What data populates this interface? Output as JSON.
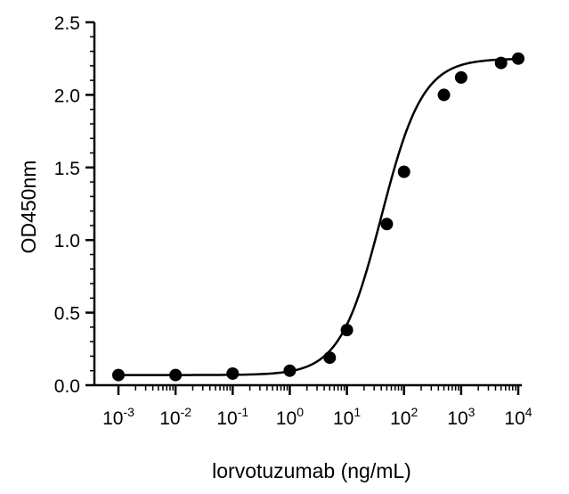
{
  "chart_data": {
    "type": "scatter",
    "xlabel": "lorvotuzumab (ng/mL)",
    "ylabel": "OD450nm",
    "x_scale": "log",
    "xlim": [
      0.001,
      10000
    ],
    "ylim": [
      0,
      2.5
    ],
    "x_ticks": [
      {
        "base": "10",
        "exp": "-3"
      },
      {
        "base": "10",
        "exp": "-2"
      },
      {
        "base": "10",
        "exp": "-1"
      },
      {
        "base": "10",
        "exp": "0"
      },
      {
        "base": "10",
        "exp": "1"
      },
      {
        "base": "10",
        "exp": "2"
      },
      {
        "base": "10",
        "exp": "3"
      },
      {
        "base": "10",
        "exp": "4"
      }
    ],
    "y_ticks": [
      "0.0",
      "0.5",
      "1.0",
      "1.5",
      "2.0",
      "2.5"
    ],
    "y_tick_values": [
      0,
      0.5,
      1.0,
      1.5,
      2.0,
      2.5
    ],
    "grid": false,
    "legend": "none",
    "marker_color": "#000000",
    "series": [
      {
        "x": [
          0.001,
          0.01,
          0.1,
          1,
          5,
          10,
          50,
          100,
          500,
          1000,
          5000,
          10000
        ],
        "y": [
          0.07,
          0.07,
          0.08,
          0.1,
          0.19,
          0.38,
          1.11,
          1.47,
          2.0,
          2.12,
          2.22,
          2.25
        ]
      }
    ],
    "fit_curve": {
      "model": "4PL",
      "bottom": 0.07,
      "top": 2.25,
      "ec50": 40,
      "hill": 1.2
    }
  }
}
